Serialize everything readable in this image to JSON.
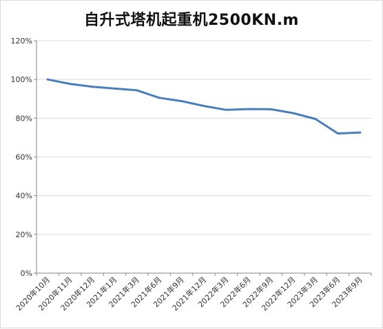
{
  "chart_data": {
    "type": "line",
    "title": "自升式塔机起重机2500KN.m",
    "xlabel": "",
    "ylabel": "",
    "categories": [
      "2020年10月",
      "2020年11月",
      "2020年12月",
      "2021年1月",
      "2021年3月",
      "2021年6月",
      "2021年9月",
      "2021年12月",
      "2022年3月",
      "2022年6月",
      "2022年9月",
      "2022年12月",
      "2023年3月",
      "2023年6月",
      "2023年9月"
    ],
    "series": [
      {
        "values": [
          100,
          97.7,
          96.2,
          95.3,
          94.4,
          90.5,
          88.8,
          86.3,
          84.3,
          84.7,
          84.6,
          82.6,
          79.6,
          72.1,
          72.6
        ],
        "color": "#4a7ebb"
      }
    ],
    "ylim": [
      0,
      120
    ],
    "yticks": [
      0,
      20,
      40,
      60,
      80,
      100,
      120
    ],
    "ytick_suffix": "%",
    "grid": true,
    "legend": "none"
  }
}
